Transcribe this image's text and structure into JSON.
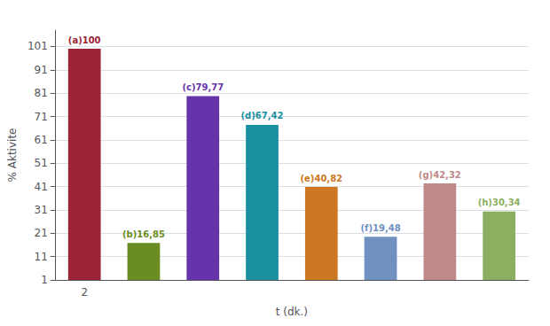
{
  "chart_data": {
    "type": "bar",
    "categories": [
      "2",
      null,
      null,
      null,
      null,
      null,
      null,
      null
    ],
    "values": [
      100,
      16.85,
      79.77,
      67.42,
      40.82,
      19.48,
      42.32,
      30.34
    ],
    "value_labels": [
      "(a)100",
      "(b)16,85",
      "(c)79,77",
      "(d)67,42",
      "(e)40,82",
      "(f)19,48",
      "(g)42,32",
      "(h)30,34"
    ],
    "colors": [
      "#9B2335",
      "#6B8C21",
      "#6633AA",
      "#1A8FA0",
      "#CC7722",
      "#7090C0",
      "#C08888",
      "#8AAF60"
    ],
    "xlabel": "t (dk.)",
    "ylabel": "% Aktivite",
    "ylim": [
      1,
      108
    ],
    "yticks": [
      1,
      11,
      21,
      31,
      41,
      51,
      61,
      71,
      81,
      91,
      101
    ],
    "grid": true,
    "data_labels": true
  }
}
